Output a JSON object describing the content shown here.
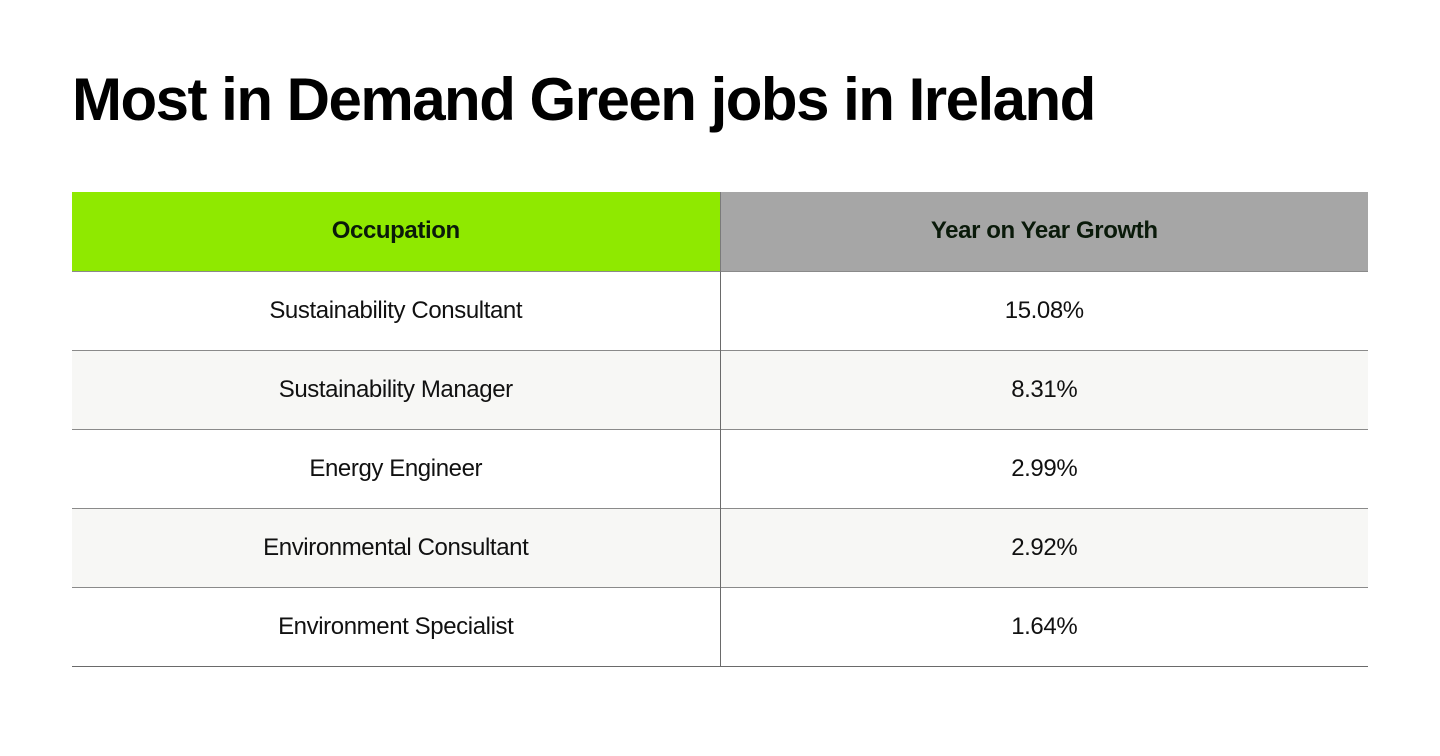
{
  "chart_data": {
    "type": "table",
    "title": "Most in Demand Green jobs in Ireland",
    "columns": [
      "Occupation",
      "Year on Year Growth"
    ],
    "rows": [
      {
        "occupation": "Sustainability Consultant",
        "growth": "15.08%"
      },
      {
        "occupation": "Sustainability Manager",
        "growth": "8.31%"
      },
      {
        "occupation": "Energy Engineer",
        "growth": "2.99%"
      },
      {
        "occupation": "Environmental Consultant",
        "growth": "2.92%"
      },
      {
        "occupation": "Environment Specialist",
        "growth": "1.64%"
      }
    ],
    "colors": {
      "occupation_header_bg": "#8fe900",
      "growth_header_bg": "#a6a6a6",
      "alt_row_bg": "#f7f7f5"
    }
  }
}
